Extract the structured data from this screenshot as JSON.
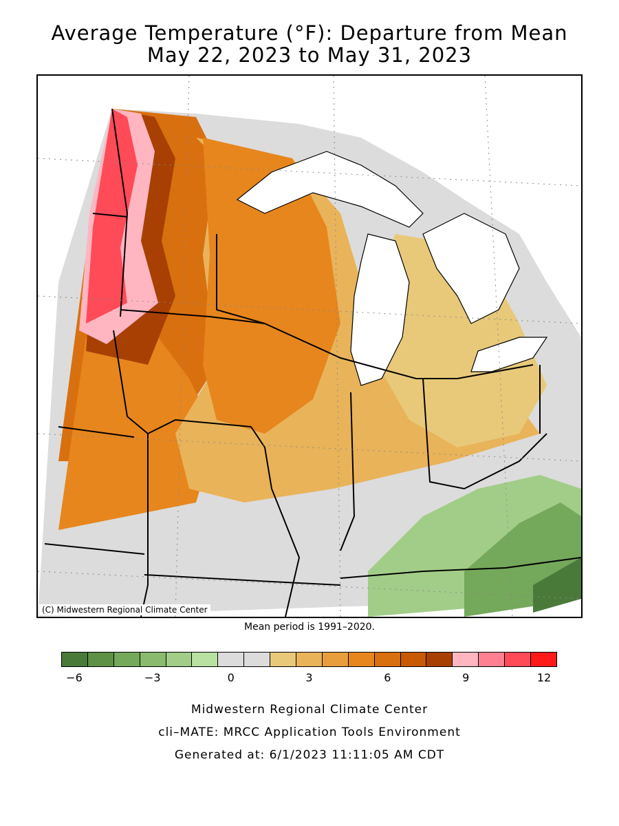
{
  "title": {
    "line1": "Average Temperature (°F): Departure from Mean",
    "line2": "May 22, 2023 to May 31, 2023"
  },
  "map": {
    "credit": "(C) Midwestern Regional Climate Center",
    "note": "Mean period is 1991–2020."
  },
  "legend": {
    "colors": [
      "#4a7a3a",
      "#5e9146",
      "#74a85a",
      "#8aba6e",
      "#a2cd88",
      "#b9e2a2",
      "#dcdcdc",
      "#dcdcdc",
      "#e8c97a",
      "#e9b35a",
      "#e89e3c",
      "#e6861d",
      "#d9700f",
      "#c85a06",
      "#a84004",
      "#ffb6c1",
      "#ff8090",
      "#ff4a58",
      "#ff1a1a"
    ],
    "ticks": [
      "−6",
      "−3",
      "0",
      "3",
      "6",
      "9",
      "12"
    ]
  },
  "footer": {
    "line1": "Midwestern Regional Climate Center",
    "line2": "cli–MATE: MRCC Application Tools Environment",
    "line3": "Generated at: 6/1/2023 11:11:05 AM CDT"
  }
}
